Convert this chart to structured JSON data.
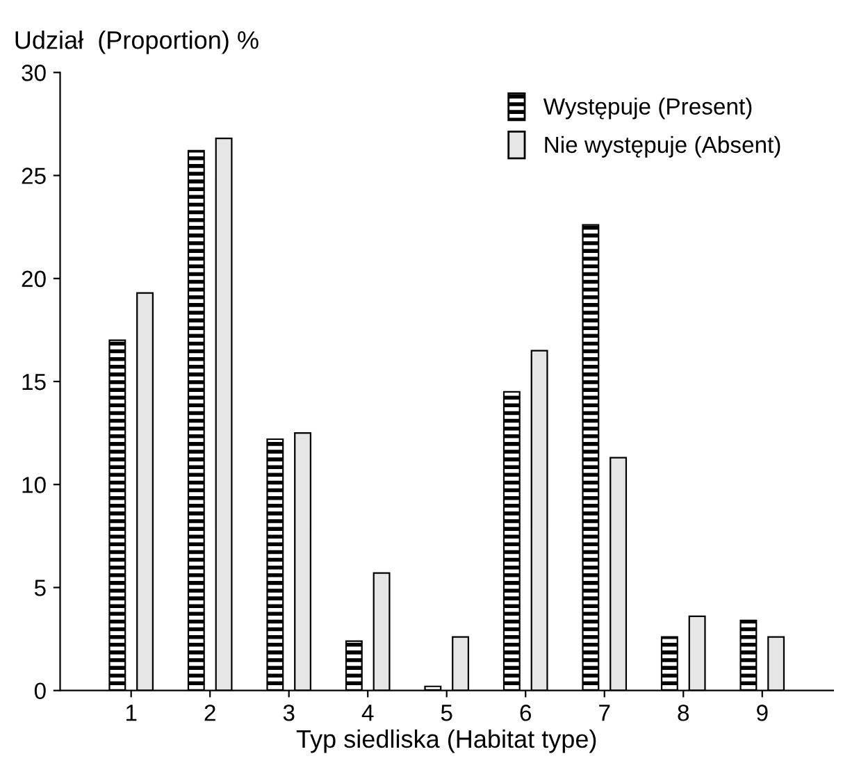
{
  "chart_data": {
    "type": "bar",
    "ylabel": "Udział  (Proportion) %",
    "xlabel": "Typ siedliska (Habitat type)",
    "categories": [
      "1",
      "2",
      "3",
      "4",
      "5",
      "6",
      "7",
      "8",
      "9"
    ],
    "series": [
      {
        "name": "Występuje (Present)",
        "color": "#000000",
        "values": [
          17.0,
          26.2,
          12.2,
          2.4,
          0.2,
          14.5,
          22.6,
          2.6,
          3.4
        ]
      },
      {
        "name": "Nie występuje (Absent)",
        "color": "#e6e6e6",
        "values": [
          19.3,
          26.8,
          12.5,
          5.7,
          2.6,
          16.5,
          11.3,
          3.6,
          2.6
        ]
      }
    ],
    "ylim": [
      0,
      30
    ],
    "yticks": [
      0,
      5,
      10,
      15,
      20,
      25,
      30
    ],
    "grid": false,
    "legend": "top right"
  }
}
